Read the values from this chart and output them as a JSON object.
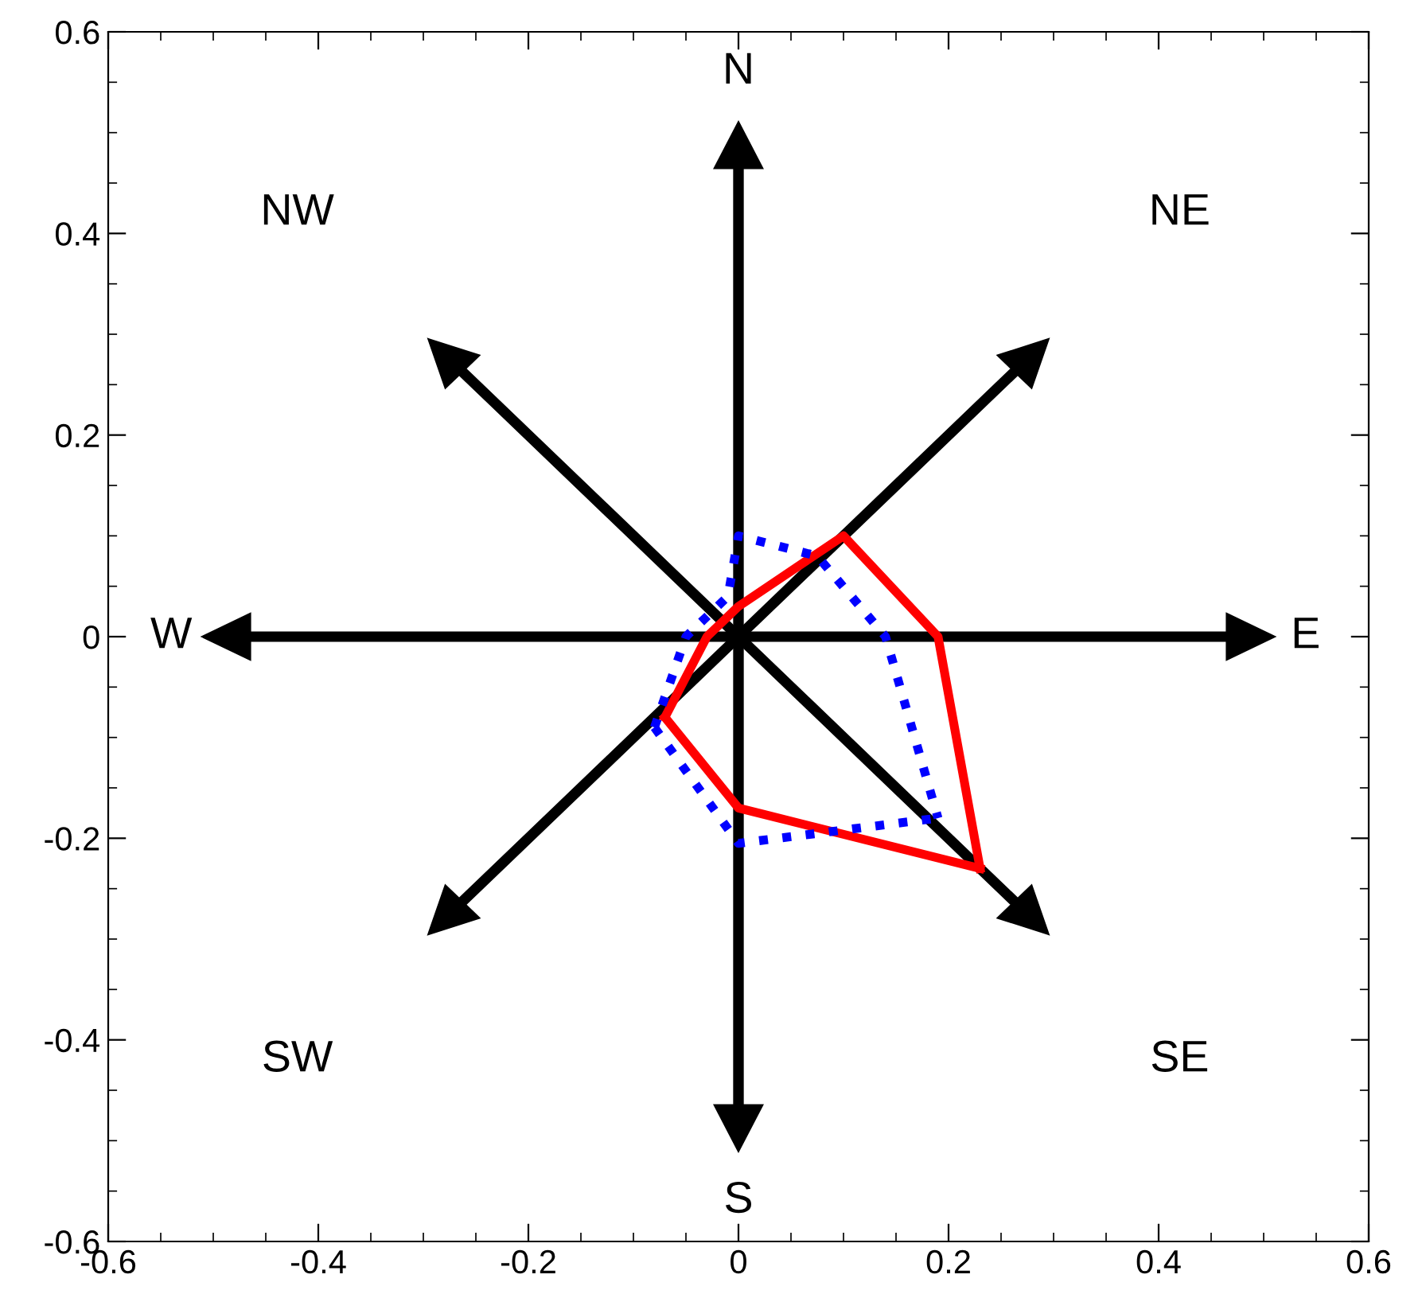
{
  "chart_data": {
    "type": "line",
    "xlim": [
      -0.6,
      0.6
    ],
    "ylim": [
      -0.6,
      0.6
    ],
    "xticks": [
      {
        "value": -0.6,
        "label": "-0.6"
      },
      {
        "value": -0.4,
        "label": "-0.4"
      },
      {
        "value": -0.2,
        "label": "-0.2"
      },
      0,
      0.2,
      0.4,
      0.6
    ],
    "yticks": [
      {
        "value": -0.6,
        "label": "-0.6"
      },
      {
        "value": -0.4,
        "label": "-0.4"
      },
      {
        "value": -0.2,
        "label": "-0.2"
      },
      0,
      0.2,
      0.4,
      0.6
    ],
    "grid": false,
    "marker": "none",
    "annotations": [
      "N",
      "NE",
      "E",
      "SE",
      "S",
      "SW",
      "W",
      "NW"
    ],
    "series": [
      {
        "color": "#ff0000",
        "line_style": "solid",
        "x": [
          -0.07,
          -0.03,
          -0.015,
          0,
          0.1,
          0.19,
          0.23
        ],
        "values": [
          -0.08,
          0,
          0.015,
          0.03,
          0.1,
          0,
          -0.23
        ]
      },
      {
        "color": "#ff0000",
        "line_style": "solid",
        "x": [
          -0.07,
          0,
          0.23
        ],
        "values": [
          -0.08,
          -0.17,
          -0.23
        ]
      },
      {
        "color": "#0000ff",
        "line_style": "dotted",
        "x": [
          -0.08,
          -0.05,
          -0.01,
          0,
          0.075,
          0.14,
          0.19
        ],
        "values": [
          -0.09,
          0,
          0.04,
          0.1,
          0.08,
          0,
          -0.18
        ]
      },
      {
        "color": "#0000ff",
        "line_style": "dotted",
        "x": [
          -0.08,
          0,
          0.19
        ],
        "values": [
          -0.09,
          -0.205,
          -0.18
        ]
      }
    ]
  }
}
